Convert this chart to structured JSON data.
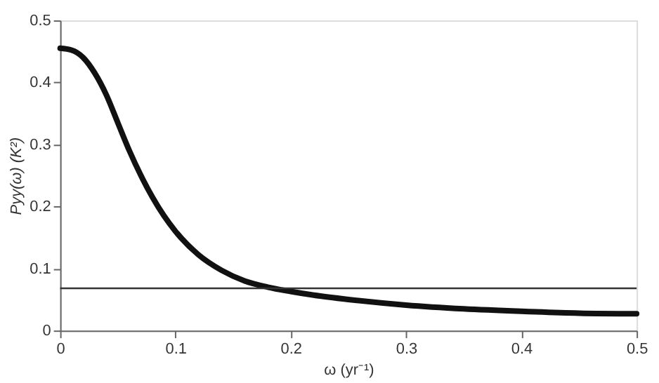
{
  "chart_data": {
    "type": "line",
    "xlabel": "ω (yr⁻¹)",
    "ylabel": "Pyy(ω) (K²)",
    "x": [
      0,
      0.01,
      0.02,
      0.03,
      0.04,
      0.05,
      0.06,
      0.07,
      0.08,
      0.09,
      0.1,
      0.12,
      0.14,
      0.16,
      0.18,
      0.2,
      0.22,
      0.25,
      0.3,
      0.35,
      0.4,
      0.45,
      0.5
    ],
    "series": [
      {
        "color": "#111111",
        "values": [
          0.455,
          0.452,
          0.44,
          0.415,
          0.38,
          0.335,
          0.29,
          0.25,
          0.215,
          0.185,
          0.16,
          0.122,
          0.097,
          0.08,
          0.07,
          0.063,
          0.057,
          0.05,
          0.041,
          0.035,
          0.031,
          0.028,
          0.027
        ]
      }
    ],
    "ref_lines": [
      {
        "axis": "y",
        "value": 0.068,
        "color": "#333333",
        "line_style": "solid"
      }
    ],
    "xlim": [
      0,
      0.5
    ],
    "xticks": [
      0,
      0.1,
      0.2,
      0.3,
      0.4,
      0.5
    ],
    "ylim": [
      0,
      0.5
    ],
    "yticks": [
      0,
      0.1,
      0.2,
      0.3,
      0.4,
      0.5
    ],
    "grid": false,
    "marker": "none",
    "line_style": "solid"
  }
}
